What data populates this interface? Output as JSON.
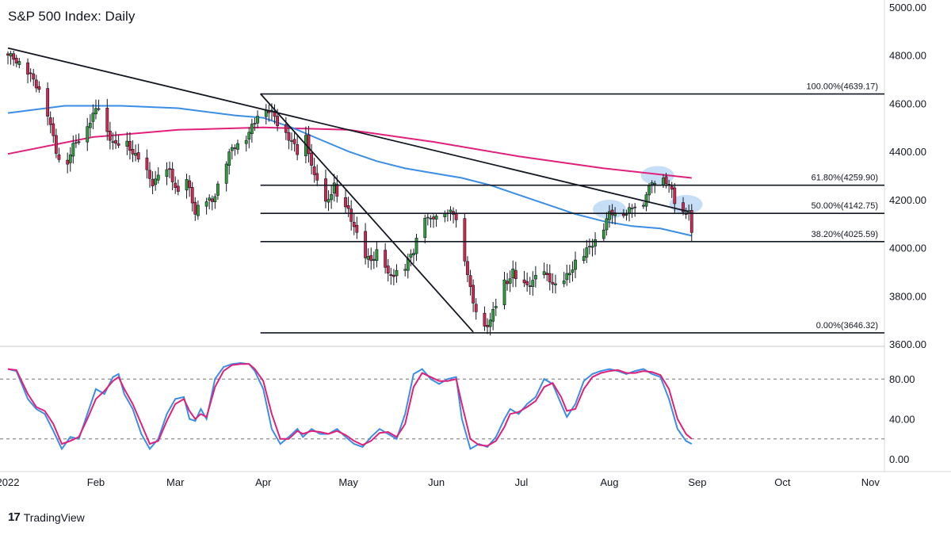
{
  "title": "S&P 500 Index: Daily",
  "branding": "TradingView",
  "colors": {
    "up": "#2e9e3a",
    "down": "#d6254f",
    "wick": "#131722",
    "ma_pink": "#e0207a",
    "ma_blue": "#3a8ee6",
    "trendline": "#131722",
    "fib_line": "#131722",
    "stoch_k": "#3a8ee6",
    "stoch_d": "#e0207a",
    "highlight": "#bcd8f5"
  },
  "chart_data": [
    {
      "type": "candlestick",
      "title": "S&P 500 Index: Daily",
      "ylim": [
        3600,
        5000
      ],
      "y_ticks": [
        "3600.00",
        "3800.00",
        "4000.00",
        "4200.00",
        "4400.00",
        "4600.00",
        "4800.00",
        "5000.00"
      ],
      "x_ticks": [
        "2022",
        "Feb",
        "Mar",
        "Apr",
        "May",
        "Jun",
        "Jul",
        "Aug",
        "Sep",
        "Oct",
        "Nov"
      ],
      "x_tick_days": [
        0,
        31,
        59,
        90,
        120,
        151,
        181,
        212,
        243,
        273,
        304
      ],
      "xlim_days": [
        0,
        304
      ],
      "anchors": [
        [
          0,
          4800
        ],
        [
          3,
          4780
        ],
        [
          7,
          4730
        ],
        [
          11,
          4660
        ],
        [
          14,
          4560
        ],
        [
          17,
          4400
        ],
        [
          20,
          4330
        ],
        [
          23,
          4420
        ],
        [
          26,
          4470
        ],
        [
          29,
          4530
        ],
        [
          32,
          4590
        ],
        [
          35,
          4480
        ],
        [
          38,
          4420
        ],
        [
          41,
          4450
        ],
        [
          45,
          4380
        ],
        [
          48,
          4330
        ],
        [
          51,
          4270
        ],
        [
          54,
          4300
        ],
        [
          57,
          4320
        ],
        [
          60,
          4220
        ],
        [
          63,
          4280
        ],
        [
          66,
          4150
        ],
        [
          69,
          4200
        ],
        [
          72,
          4190
        ],
        [
          75,
          4300
        ],
        [
          78,
          4390
        ],
        [
          81,
          4440
        ],
        [
          84,
          4460
        ],
        [
          87,
          4520
        ],
        [
          89,
          4600
        ],
        [
          91,
          4580
        ],
        [
          93,
          4560
        ],
        [
          95,
          4520
        ],
        [
          98,
          4480
        ],
        [
          101,
          4420
        ],
        [
          103,
          4370
        ],
        [
          105,
          4460
        ],
        [
          108,
          4290
        ],
        [
          110,
          4270
        ],
        [
          112,
          4180
        ],
        [
          115,
          4260
        ],
        [
          117,
          4150
        ],
        [
          120,
          4160
        ],
        [
          123,
          4050
        ],
        [
          126,
          3950
        ],
        [
          129,
          3960
        ],
        [
          131,
          4000
        ],
        [
          134,
          3880
        ],
        [
          137,
          3900
        ],
        [
          140,
          3920
        ],
        [
          143,
          3990
        ],
        [
          146,
          4150
        ],
        [
          149,
          4110
        ],
        [
          152,
          4160
        ],
        [
          155,
          4150
        ],
        [
          158,
          4130
        ],
        [
          160,
          4000
        ],
        [
          162,
          3900
        ],
        [
          164,
          3760
        ],
        [
          166,
          3730
        ],
        [
          168,
          3670
        ],
        [
          170,
          3700
        ],
        [
          172,
          3760
        ],
        [
          174,
          3850
        ],
        [
          176,
          3860
        ],
        [
          178,
          3900
        ],
        [
          180,
          3830
        ],
        [
          182,
          3840
        ],
        [
          185,
          3860
        ],
        [
          188,
          3900
        ],
        [
          191,
          3870
        ],
        [
          194,
          3820
        ],
        [
          197,
          3880
        ],
        [
          200,
          3940
        ],
        [
          203,
          3970
        ],
        [
          206,
          4020
        ],
        [
          209,
          4060
        ],
        [
          212,
          4140
        ],
        [
          215,
          4160
        ],
        [
          218,
          4140
        ],
        [
          221,
          4180
        ],
        [
          223,
          4140
        ],
        [
          225,
          4230
        ],
        [
          228,
          4280
        ],
        [
          230,
          4300
        ],
        [
          232,
          4280
        ],
        [
          234,
          4230
        ],
        [
          236,
          4150
        ],
        [
          238,
          4140
        ],
        [
          240,
          4160
        ],
        [
          241,
          4050
        ]
      ],
      "ma_pink_anchors": [
        [
          0,
          4390
        ],
        [
          30,
          4460
        ],
        [
          60,
          4490
        ],
        [
          90,
          4500
        ],
        [
          120,
          4490
        ],
        [
          150,
          4440
        ],
        [
          180,
          4380
        ],
        [
          210,
          4330
        ],
        [
          241,
          4290
        ]
      ],
      "ma_blue_anchors": [
        [
          0,
          4560
        ],
        [
          20,
          4590
        ],
        [
          40,
          4590
        ],
        [
          60,
          4580
        ],
        [
          80,
          4550
        ],
        [
          90,
          4540
        ],
        [
          100,
          4500
        ],
        [
          110,
          4450
        ],
        [
          120,
          4400
        ],
        [
          130,
          4360
        ],
        [
          140,
          4330
        ],
        [
          150,
          4310
        ],
        [
          160,
          4290
        ],
        [
          170,
          4260
        ],
        [
          180,
          4220
        ],
        [
          190,
          4180
        ],
        [
          200,
          4140
        ],
        [
          210,
          4110
        ],
        [
          220,
          4090
        ],
        [
          230,
          4080
        ],
        [
          241,
          4050
        ]
      ],
      "trendlines": [
        {
          "from": [
            0,
            4830
          ],
          "to": [
            240,
            4150
          ]
        },
        {
          "from": [
            89,
            4640
          ],
          "to": [
            164,
            3650
          ]
        }
      ],
      "fib_levels": [
        {
          "label": "100.00%(4639.17)",
          "value": 4639.17
        },
        {
          "label": "61.80%(4259.90)",
          "value": 4259.9
        },
        {
          "label": "50.00%(4142.75)",
          "value": 4142.75
        },
        {
          "label": "38.20%(4025.59)",
          "value": 4025.59
        },
        {
          "label": "0.00%(3646.32)",
          "value": 3646.32
        }
      ],
      "fib_start_day": 89,
      "highlights": [
        {
          "day": 212,
          "value": 4160
        },
        {
          "day": 229,
          "value": 4300
        },
        {
          "day": 239,
          "value": 4180
        }
      ]
    },
    {
      "type": "line",
      "title": "Stochastic",
      "ylim": [
        0,
        100
      ],
      "y_ticks": [
        "0.00",
        "40.00",
        "80.00"
      ],
      "levels": [
        80,
        20
      ],
      "series": [
        {
          "name": "",
          "values": [
            [
              0,
              90
            ],
            [
              3,
              88
            ],
            [
              7,
              60
            ],
            [
              10,
              50
            ],
            [
              13,
              45
            ],
            [
              16,
              28
            ],
            [
              19,
              10
            ],
            [
              22,
              22
            ],
            [
              25,
              20
            ],
            [
              28,
              45
            ],
            [
              31,
              70
            ],
            [
              34,
              65
            ],
            [
              37,
              82
            ],
            [
              39,
              85
            ],
            [
              41,
              65
            ],
            [
              44,
              50
            ],
            [
              47,
              25
            ],
            [
              50,
              10
            ],
            [
              53,
              20
            ],
            [
              56,
              45
            ],
            [
              59,
              60
            ],
            [
              62,
              62
            ],
            [
              64,
              40
            ],
            [
              66,
              38
            ],
            [
              68,
              50
            ],
            [
              70,
              40
            ],
            [
              73,
              80
            ],
            [
              76,
              92
            ],
            [
              79,
              95
            ],
            [
              82,
              96
            ],
            [
              85,
              95
            ],
            [
              87,
              88
            ],
            [
              90,
              70
            ],
            [
              93,
              30
            ],
            [
              96,
              15
            ],
            [
              99,
              22
            ],
            [
              102,
              30
            ],
            [
              104,
              22
            ],
            [
              107,
              30
            ],
            [
              110,
              25
            ],
            [
              113,
              25
            ],
            [
              116,
              30
            ],
            [
              119,
              22
            ],
            [
              122,
              15
            ],
            [
              125,
              12
            ],
            [
              128,
              22
            ],
            [
              131,
              30
            ],
            [
              134,
              25
            ],
            [
              137,
              20
            ],
            [
              140,
              45
            ],
            [
              143,
              85
            ],
            [
              146,
              90
            ],
            [
              149,
              80
            ],
            [
              152,
              75
            ],
            [
              155,
              80
            ],
            [
              158,
              82
            ],
            [
              160,
              40
            ],
            [
              163,
              10
            ],
            [
              166,
              15
            ],
            [
              169,
              12
            ],
            [
              172,
              22
            ],
            [
              175,
              40
            ],
            [
              177,
              50
            ],
            [
              180,
              45
            ],
            [
              183,
              55
            ],
            [
              186,
              62
            ],
            [
              189,
              80
            ],
            [
              192,
              75
            ],
            [
              195,
              55
            ],
            [
              197,
              42
            ],
            [
              200,
              55
            ],
            [
              203,
              78
            ],
            [
              206,
              85
            ],
            [
              209,
              88
            ],
            [
              212,
              90
            ],
            [
              215,
              88
            ],
            [
              218,
              85
            ],
            [
              221,
              88
            ],
            [
              224,
              90
            ],
            [
              227,
              85
            ],
            [
              230,
              82
            ],
            [
              233,
              60
            ],
            [
              236,
              30
            ],
            [
              239,
              18
            ],
            [
              241,
              15
            ]
          ]
        },
        {
          "name": "",
          "values": [
            [
              0,
              90
            ],
            [
              3,
              89
            ],
            [
              7,
              65
            ],
            [
              10,
              52
            ],
            [
              13,
              48
            ],
            [
              16,
              35
            ],
            [
              19,
              15
            ],
            [
              22,
              18
            ],
            [
              25,
              22
            ],
            [
              28,
              40
            ],
            [
              31,
              60
            ],
            [
              34,
              68
            ],
            [
              37,
              78
            ],
            [
              39,
              82
            ],
            [
              41,
              70
            ],
            [
              44,
              55
            ],
            [
              47,
              35
            ],
            [
              50,
              15
            ],
            [
              53,
              18
            ],
            [
              56,
              38
            ],
            [
              59,
              55
            ],
            [
              62,
              60
            ],
            [
              64,
              48
            ],
            [
              66,
              40
            ],
            [
              68,
              45
            ],
            [
              70,
              42
            ],
            [
              73,
              72
            ],
            [
              76,
              88
            ],
            [
              79,
              94
            ],
            [
              82,
              95
            ],
            [
              85,
              95
            ],
            [
              87,
              90
            ],
            [
              90,
              78
            ],
            [
              93,
              45
            ],
            [
              96,
              20
            ],
            [
              99,
              20
            ],
            [
              102,
              28
            ],
            [
              104,
              25
            ],
            [
              107,
              28
            ],
            [
              110,
              27
            ],
            [
              113,
              25
            ],
            [
              116,
              28
            ],
            [
              119,
              24
            ],
            [
              122,
              18
            ],
            [
              125,
              14
            ],
            [
              128,
              18
            ],
            [
              131,
              26
            ],
            [
              134,
              27
            ],
            [
              137,
              22
            ],
            [
              140,
              35
            ],
            [
              143,
              72
            ],
            [
              146,
              86
            ],
            [
              149,
              82
            ],
            [
              152,
              78
            ],
            [
              155,
              78
            ],
            [
              158,
              80
            ],
            [
              160,
              55
            ],
            [
              163,
              20
            ],
            [
              166,
              14
            ],
            [
              169,
              13
            ],
            [
              172,
              18
            ],
            [
              175,
              32
            ],
            [
              177,
              45
            ],
            [
              180,
              47
            ],
            [
              183,
              52
            ],
            [
              186,
              58
            ],
            [
              189,
              72
            ],
            [
              192,
              76
            ],
            [
              195,
              62
            ],
            [
              197,
              48
            ],
            [
              200,
              50
            ],
            [
              203,
              70
            ],
            [
              206,
              82
            ],
            [
              209,
              86
            ],
            [
              212,
              88
            ],
            [
              215,
              89
            ],
            [
              218,
              86
            ],
            [
              221,
              86
            ],
            [
              224,
              88
            ],
            [
              227,
              87
            ],
            [
              230,
              84
            ],
            [
              233,
              70
            ],
            [
              236,
              40
            ],
            [
              239,
              25
            ],
            [
              241,
              20
            ]
          ]
        }
      ]
    }
  ]
}
